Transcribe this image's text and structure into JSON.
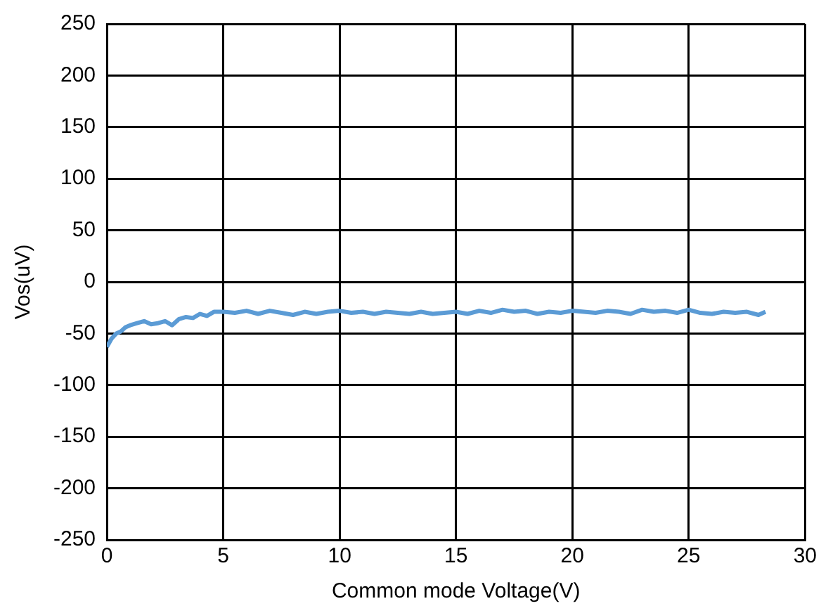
{
  "chart_data": {
    "type": "line",
    "xlabel": "Common mode Voltage(V)",
    "ylabel": "Vos(uV)",
    "xlim": [
      0,
      30
    ],
    "xticks": [
      0,
      5,
      10,
      15,
      20,
      25,
      30
    ],
    "ylim": [
      -250,
      250
    ],
    "yticks": [
      -250,
      -200,
      -150,
      -100,
      -50,
      0,
      50,
      100,
      150,
      200,
      250
    ],
    "grid": true,
    "legend": false,
    "marker": "none",
    "line_style": "solid",
    "series": [
      {
        "color": "#5b9bd5",
        "x": [
          0,
          0.2,
          0.4,
          0.6,
          0.8,
          1,
          1.3,
          1.6,
          1.9,
          2.2,
          2.5,
          2.8,
          3.1,
          3.4,
          3.7,
          4,
          4.3,
          4.6,
          5,
          5.5,
          6,
          6.5,
          7,
          7.5,
          8,
          8.5,
          9,
          9.5,
          10,
          10.5,
          11,
          11.5,
          12,
          12.5,
          13,
          13.5,
          14,
          14.5,
          15,
          15.5,
          16,
          16.5,
          17,
          17.5,
          18,
          18.5,
          19,
          19.5,
          20,
          20.5,
          21,
          21.5,
          22,
          22.5,
          23,
          23.5,
          24,
          24.5,
          25,
          25.5,
          26,
          26.5,
          27,
          27.5,
          28,
          28.3
        ],
        "values": [
          -63,
          -55,
          -50,
          -48,
          -44,
          -42,
          -40,
          -38,
          -41,
          -40,
          -38,
          -42,
          -36,
          -34,
          -35,
          -31,
          -33,
          -29,
          -29,
          -30,
          -28,
          -31,
          -28,
          -30,
          -32,
          -29,
          -31,
          -29,
          -28,
          -30,
          -29,
          -31,
          -29,
          -30,
          -31,
          -29,
          -31,
          -30,
          -29,
          -31,
          -28,
          -30,
          -27,
          -29,
          -28,
          -31,
          -29,
          -30,
          -28,
          -29,
          -30,
          -28,
          -29,
          -31,
          -27,
          -29,
          -28,
          -30,
          -27,
          -30,
          -31,
          -29,
          -30,
          -29,
          -32,
          -29
        ]
      }
    ]
  }
}
